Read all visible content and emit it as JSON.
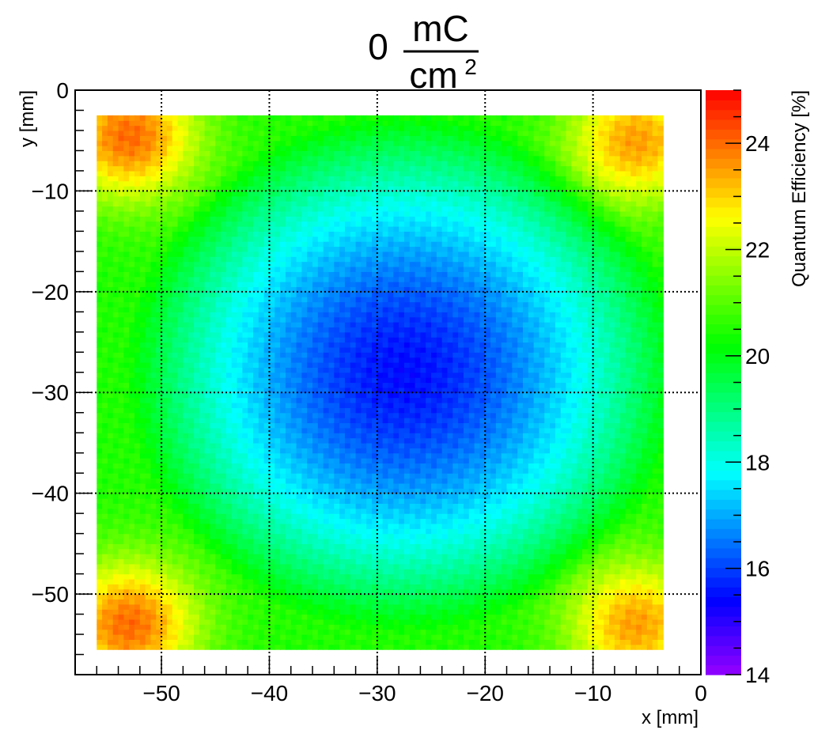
{
  "chart_data": {
    "type": "heatmap",
    "title": {
      "value": "0",
      "numerator": "mC",
      "denominator_base": "cm",
      "denominator_exponent": "2"
    },
    "xlabel": "x [mm]",
    "ylabel": "y [mm]",
    "zlabel": "Quantum Efficiency [%]",
    "xlim": [
      -58,
      0
    ],
    "ylim": [
      -58,
      0
    ],
    "zlim": [
      14,
      25
    ],
    "x_ticks": [
      "−50",
      "−40",
      "−30",
      "−20",
      "−10",
      "0"
    ],
    "y_ticks": [
      "0",
      "−10",
      "−20",
      "−30",
      "−40",
      "−50"
    ],
    "z_ticks": [
      "14",
      "16",
      "18",
      "20",
      "22",
      "24"
    ],
    "grid": true,
    "colormap": "rainbow (violet-blue-cyan-green-yellow-red)",
    "data_extent": {
      "x": [
        -56,
        -3.5
      ],
      "y": [
        -55.5,
        -2.5
      ]
    },
    "features": {
      "center_minimum": {
        "x": -27.5,
        "y": -28,
        "value": 15.5
      },
      "edge_value": 20.5,
      "corner_maxima": [
        {
          "corner": "top-left",
          "x": -53,
          "y": -4.5,
          "value": 24
        },
        {
          "corner": "top-right",
          "x": -6,
          "y": -5,
          "value": 23.5
        },
        {
          "corner": "bottom-left",
          "x": -53,
          "y": -53,
          "value": 24
        },
        {
          "corner": "bottom-right",
          "x": -6,
          "y": -53,
          "value": 23.5
        }
      ]
    },
    "colors": {
      "axis": "#000000",
      "grid": "#000000",
      "background": "#ffffff"
    }
  }
}
